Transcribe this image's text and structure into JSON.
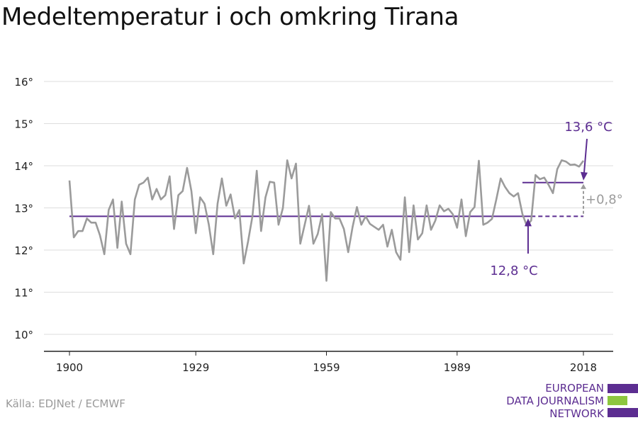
{
  "title": "Medeltemperatur i och omkring Tirana",
  "source": "Källa: EDJNet / ECMWF",
  "logo": {
    "lines": [
      "EUROPEAN",
      "DATA JOURNALISM",
      "NETWORK"
    ],
    "colors": {
      "purple": "#5c2d91",
      "green": "#8dc63f"
    }
  },
  "colors": {
    "series": "#9b9b9b",
    "accent": "#5c2d91",
    "grid": "#dddddd",
    "axis": "#222222"
  },
  "chart_data": {
    "type": "line",
    "title": "Medeltemperatur i och omkring Tirana",
    "xlim": [
      1900,
      2018
    ],
    "ylim": [
      10,
      16
    ],
    "x_ticks": [
      1900,
      1929,
      1959,
      1989,
      2018
    ],
    "y_ticks": [
      10,
      11,
      12,
      13,
      14,
      15,
      16
    ],
    "y_tick_labels": [
      "10°",
      "11°",
      "12°",
      "13°",
      "14°",
      "15°",
      "16°"
    ],
    "x": [
      1900,
      1901,
      1902,
      1903,
      1904,
      1905,
      1906,
      1907,
      1908,
      1909,
      1910,
      1911,
      1912,
      1913,
      1914,
      1915,
      1916,
      1917,
      1918,
      1919,
      1920,
      1921,
      1922,
      1923,
      1924,
      1925,
      1926,
      1927,
      1928,
      1929,
      1930,
      1931,
      1932,
      1933,
      1934,
      1935,
      1936,
      1937,
      1938,
      1939,
      1940,
      1941,
      1942,
      1943,
      1944,
      1945,
      1946,
      1947,
      1948,
      1949,
      1950,
      1951,
      1952,
      1953,
      1954,
      1955,
      1956,
      1957,
      1958,
      1959,
      1960,
      1961,
      1962,
      1963,
      1964,
      1965,
      1966,
      1967,
      1968,
      1969,
      1970,
      1971,
      1972,
      1973,
      1974,
      1975,
      1976,
      1977,
      1978,
      1979,
      1980,
      1981,
      1982,
      1983,
      1984,
      1985,
      1986,
      1987,
      1988,
      1989,
      1990,
      1991,
      1992,
      1993,
      1994,
      1995,
      1996,
      1997,
      1998,
      1999,
      2000,
      2001,
      2002,
      2003,
      2004,
      2005,
      2006,
      2007,
      2008,
      2009,
      2010,
      2011,
      2012,
      2013,
      2014,
      2015,
      2016,
      2017,
      2018
    ],
    "series": [
      {
        "values": [
          13.65,
          12.3,
          12.45,
          12.45,
          12.75,
          12.65,
          12.65,
          12.35,
          11.9,
          12.95,
          13.2,
          12.05,
          13.15,
          12.15,
          11.9,
          13.2,
          13.55,
          13.6,
          13.72,
          13.2,
          13.45,
          13.2,
          13.3,
          13.75,
          12.5,
          13.3,
          13.4,
          13.95,
          13.4,
          12.4,
          13.25,
          13.1,
          12.6,
          11.9,
          13.1,
          13.7,
          13.05,
          13.32,
          12.75,
          12.95,
          11.68,
          12.2,
          12.8,
          13.88,
          12.45,
          13.25,
          13.62,
          13.6,
          12.6,
          13.0,
          14.13,
          13.7,
          14.05,
          12.15,
          12.6,
          13.05,
          12.15,
          12.38,
          12.85,
          11.27,
          12.9,
          12.75,
          12.75,
          12.5,
          11.95,
          12.55,
          13.02,
          12.6,
          12.8,
          12.62,
          12.55,
          12.48,
          12.6,
          12.08,
          12.48,
          11.95,
          11.77,
          13.25,
          11.95,
          13.06,
          12.25,
          12.4,
          13.06,
          12.48,
          12.7,
          13.06,
          12.92,
          12.98,
          12.85,
          12.53,
          13.2,
          12.33,
          12.9,
          13.02,
          14.12,
          12.6,
          12.65,
          12.74,
          13.2,
          13.7,
          13.5,
          13.35,
          13.27,
          13.35,
          12.85,
          12.58,
          12.7,
          13.78,
          13.68,
          13.72,
          13.55,
          13.35,
          13.92,
          14.13,
          14.1,
          14.02,
          14.03,
          13.98,
          14.12
        ]
      }
    ],
    "baseline": {
      "value": 12.8,
      "from": 1900,
      "to": 2018,
      "label": "12,8 °C"
    },
    "recent_mean": {
      "value": 13.6,
      "from": 2004,
      "to": 2018,
      "label": "13,6 °C"
    },
    "difference_label": "+0,8°",
    "grid": true
  }
}
